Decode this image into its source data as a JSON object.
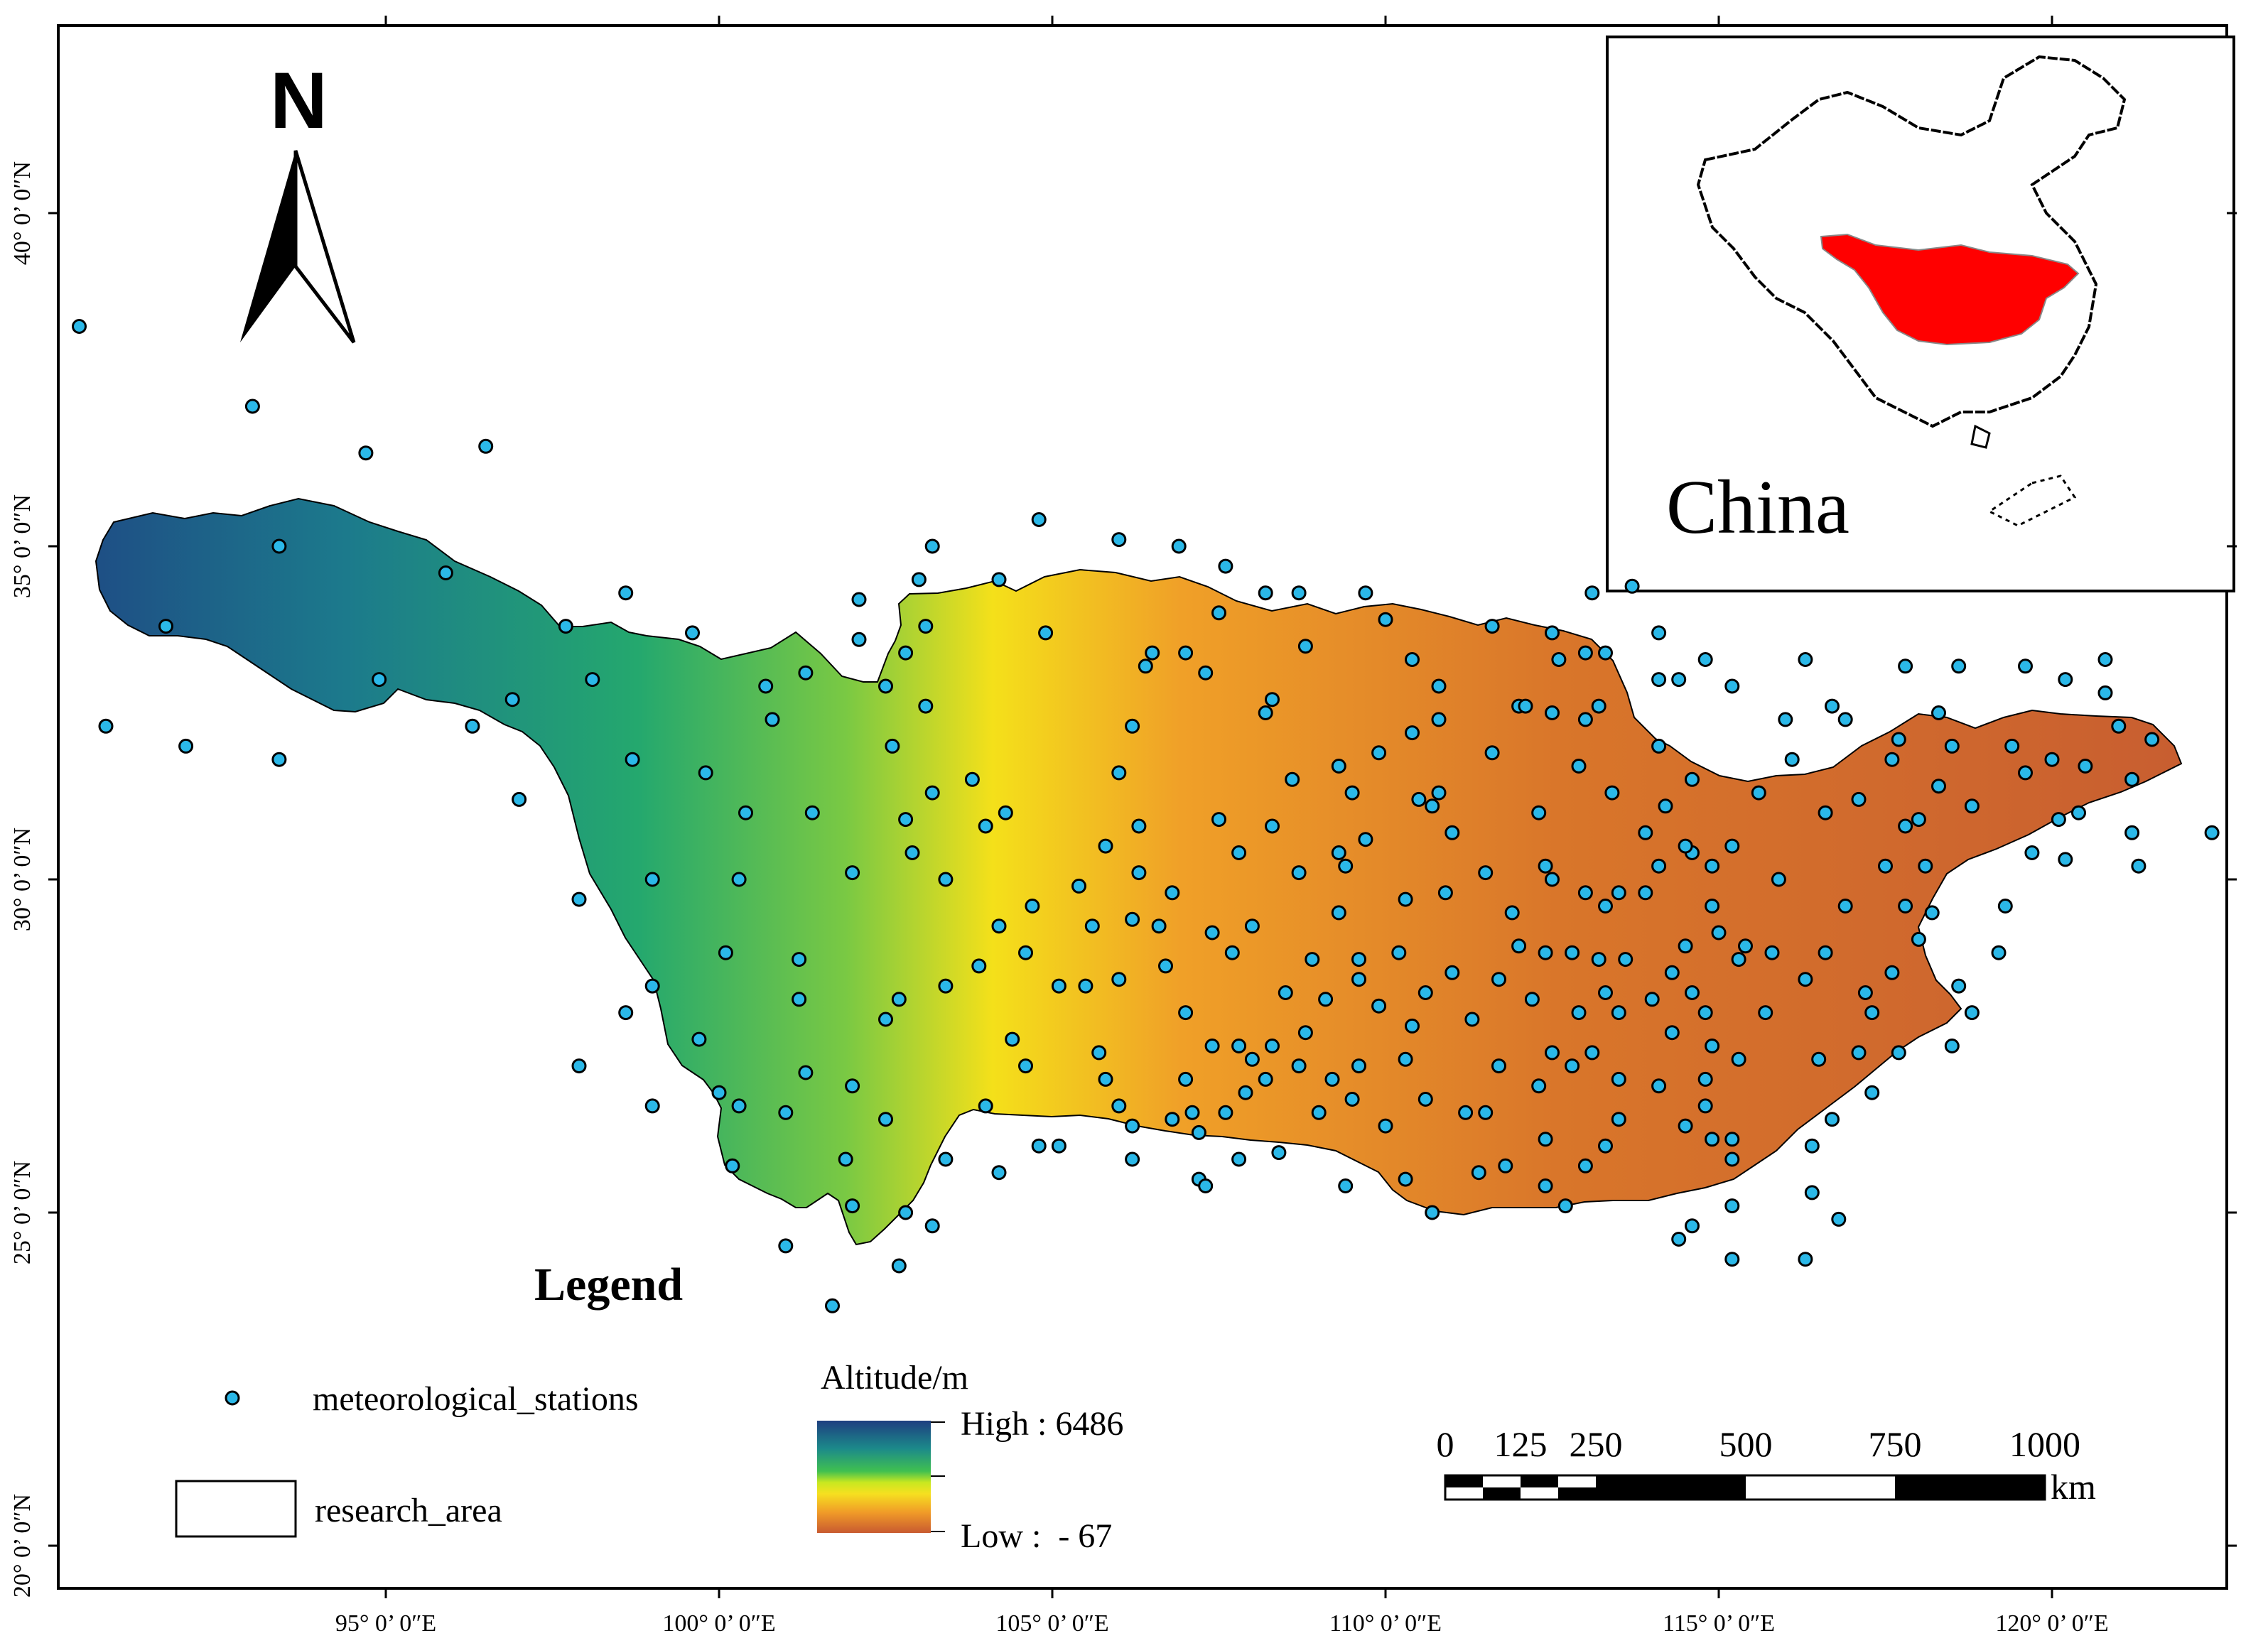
{
  "map": {
    "longitude_ticks": [
      {
        "lon": 95,
        "label": "95° 0’ 0″E"
      },
      {
        "lon": 100,
        "label": "100° 0’ 0″E"
      },
      {
        "lon": 105,
        "label": "105° 0’ 0″E"
      },
      {
        "lon": 110,
        "label": "110° 0’ 0″E"
      },
      {
        "lon": 115,
        "label": "115° 0’ 0″E"
      },
      {
        "lon": 120,
        "label": "120° 0’ 0″E"
      }
    ],
    "latitude_ticks": [
      {
        "lat": 40,
        "label": "40° 0’ 0″N"
      },
      {
        "lat": 35,
        "label": "35° 0’ 0″N"
      },
      {
        "lat": 30,
        "label": "30° 0’ 0″N"
      },
      {
        "lat": 25,
        "label": "25° 0’ 0″N"
      },
      {
        "lat": 20,
        "label": "20° 0’ 0″N"
      }
    ],
    "north_arrow_label": "N",
    "stations_color": "#2bb8e8",
    "research_area_colors": [
      "#1e4f85",
      "#1c7a8c",
      "#24a86e",
      "#7ac943",
      "#f4e01a",
      "#f0a028",
      "#d9762a",
      "#c85e30"
    ]
  },
  "inset": {
    "label": "China",
    "highlight_color": "#ff0000"
  },
  "legend": {
    "title": "Legend",
    "stations_label": "meteorological_stations",
    "research_area_label": "research_area",
    "altitude_title": "Altitude/m",
    "high_label": "High : 6486",
    "low_label": "Low :  - 67"
  },
  "scale_bar": {
    "labels": [
      "0",
      "125",
      "250",
      "500",
      "750",
      "1000"
    ],
    "unit": "km"
  },
  "stations": [
    [
      90.4,
      38.3
    ],
    [
      93.0,
      37.1
    ],
    [
      94.7,
      36.4
    ],
    [
      96.5,
      36.5
    ],
    [
      93.4,
      35.0
    ],
    [
      91.7,
      33.8
    ],
    [
      95.9,
      34.6
    ],
    [
      97.7,
      33.8
    ],
    [
      98.6,
      34.3
    ],
    [
      99.6,
      33.7
    ],
    [
      94.9,
      33.0
    ],
    [
      96.9,
      32.7
    ],
    [
      98.1,
      33.0
    ],
    [
      90.8,
      32.3
    ],
    [
      92.0,
      32.0
    ],
    [
      93.4,
      31.8
    ],
    [
      96.3,
      32.3
    ],
    [
      97.0,
      31.2
    ],
    [
      98.7,
      31.8
    ],
    [
      99.8,
      31.6
    ],
    [
      100.7,
      32.9
    ],
    [
      100.8,
      32.4
    ],
    [
      101.3,
      33.1
    ],
    [
      102.1,
      33.6
    ],
    [
      102.8,
      33.4
    ],
    [
      100.4,
      31.0
    ],
    [
      100.3,
      30.0
    ],
    [
      97.9,
      29.7
    ],
    [
      99.0,
      30.0
    ],
    [
      101.4,
      31.0
    ],
    [
      102.0,
      30.1
    ],
    [
      101.2,
      28.8
    ],
    [
      100.1,
      28.9
    ],
    [
      101.2,
      28.2
    ],
    [
      99.0,
      28.4
    ],
    [
      98.6,
      28.0
    ],
    [
      97.9,
      27.2
    ],
    [
      99.7,
      27.6
    ],
    [
      100.0,
      26.8
    ],
    [
      100.3,
      26.6
    ],
    [
      101.0,
      26.5
    ],
    [
      101.3,
      27.1
    ],
    [
      101.9,
      25.8
    ],
    [
      99.0,
      26.6
    ],
    [
      100.2,
      25.7
    ],
    [
      102.0,
      25.1
    ],
    [
      101.0,
      24.5
    ],
    [
      101.7,
      23.6
    ],
    [
      102.7,
      24.2
    ],
    [
      103.2,
      24.8
    ],
    [
      102.8,
      25.0
    ],
    [
      104.2,
      25.6
    ],
    [
      103.4,
      25.8
    ],
    [
      102.5,
      26.4
    ],
    [
      102.0,
      26.9
    ],
    [
      102.5,
      27.9
    ],
    [
      102.7,
      28.2
    ],
    [
      103.4,
      28.4
    ],
    [
      104.0,
      26.6
    ],
    [
      104.2,
      29.3
    ],
    [
      103.4,
      30.0
    ],
    [
      102.9,
      30.4
    ],
    [
      102.8,
      30.9
    ],
    [
      103.2,
      31.3
    ],
    [
      102.6,
      32.0
    ],
    [
      102.5,
      32.9
    ],
    [
      103.1,
      32.6
    ],
    [
      103.1,
      33.8
    ],
    [
      102.1,
      34.2
    ],
    [
      103.0,
      34.5
    ],
    [
      103.2,
      35.0
    ],
    [
      104.2,
      34.5
    ],
    [
      104.9,
      33.7
    ],
    [
      104.3,
      31.0
    ],
    [
      103.8,
      31.5
    ],
    [
      104.0,
      30.8
    ],
    [
      105.4,
      29.9
    ],
    [
      105.8,
      30.5
    ],
    [
      104.6,
      28.9
    ],
    [
      103.9,
      28.7
    ],
    [
      104.7,
      29.6
    ],
    [
      105.1,
      28.4
    ],
    [
      104.4,
      27.6
    ],
    [
      104.6,
      27.2
    ],
    [
      105.5,
      28.4
    ],
    [
      105.7,
      27.4
    ],
    [
      105.8,
      27.0
    ],
    [
      106.0,
      26.6
    ],
    [
      104.8,
      26.0
    ],
    [
      105.1,
      26.0
    ],
    [
      106.2,
      25.8
    ],
    [
      106.2,
      26.3
    ],
    [
      106.8,
      26.4
    ],
    [
      107.1,
      26.5
    ],
    [
      107.0,
      27.0
    ],
    [
      107.8,
      27.5
    ],
    [
      107.4,
      27.5
    ],
    [
      107.0,
      28.0
    ],
    [
      106.7,
      28.7
    ],
    [
      106.0,
      28.5
    ],
    [
      106.2,
      29.4
    ],
    [
      106.3,
      30.1
    ],
    [
      106.8,
      29.8
    ],
    [
      106.3,
      30.8
    ],
    [
      106.0,
      31.6
    ],
    [
      106.2,
      32.3
    ],
    [
      106.4,
      33.2
    ],
    [
      106.5,
      33.4
    ],
    [
      107.3,
      33.1
    ],
    [
      107.0,
      33.4
    ],
    [
      107.5,
      34.0
    ],
    [
      107.6,
      34.7
    ],
    [
      106.9,
      35.0
    ],
    [
      106.0,
      35.1
    ],
    [
      104.8,
      35.4
    ],
    [
      105.6,
      29.3
    ],
    [
      106.6,
      29.3
    ],
    [
      107.7,
      28.9
    ],
    [
      107.4,
      29.2
    ],
    [
      107.2,
      26.2
    ],
    [
      108.4,
      25.9
    ],
    [
      107.8,
      25.8
    ],
    [
      107.2,
      25.5
    ],
    [
      107.3,
      25.4
    ],
    [
      107.6,
      26.5
    ],
    [
      108.2,
      27.0
    ],
    [
      107.9,
      26.8
    ],
    [
      108.3,
      27.5
    ],
    [
      108.7,
      27.2
    ],
    [
      108.0,
      27.3
    ],
    [
      108.5,
      28.3
    ],
    [
      108.9,
      28.8
    ],
    [
      108.0,
      29.3
    ],
    [
      107.8,
      30.4
    ],
    [
      107.5,
      30.9
    ],
    [
      108.3,
      30.8
    ],
    [
      108.7,
      30.1
    ],
    [
      109.4,
      30.2
    ],
    [
      109.3,
      29.5
    ],
    [
      109.6,
      28.5
    ],
    [
      109.6,
      28.8
    ],
    [
      109.9,
      28.1
    ],
    [
      109.1,
      28.2
    ],
    [
      108.8,
      27.7
    ],
    [
      109.2,
      27.0
    ],
    [
      109.6,
      27.2
    ],
    [
      109.5,
      26.7
    ],
    [
      109.0,
      26.5
    ],
    [
      109.4,
      25.4
    ],
    [
      110.3,
      25.5
    ],
    [
      110.0,
      26.3
    ],
    [
      110.6,
      26.7
    ],
    [
      110.7,
      25.0
    ],
    [
      110.3,
      27.3
    ],
    [
      110.4,
      27.8
    ],
    [
      110.6,
      28.3
    ],
    [
      110.2,
      28.9
    ],
    [
      110.3,
      29.7
    ],
    [
      109.7,
      30.6
    ],
    [
      109.5,
      31.3
    ],
    [
      110.5,
      31.2
    ],
    [
      110.7,
      31.1
    ],
    [
      110.8,
      31.3
    ],
    [
      111.0,
      30.7
    ],
    [
      109.9,
      31.9
    ],
    [
      110.4,
      32.2
    ],
    [
      110.8,
      32.4
    ],
    [
      110.8,
      32.9
    ],
    [
      110.4,
      33.3
    ],
    [
      110.0,
      33.9
    ],
    [
      109.7,
      34.3
    ],
    [
      108.7,
      34.3
    ],
    [
      108.2,
      34.3
    ],
    [
      108.8,
      33.5
    ],
    [
      108.2,
      32.5
    ],
    [
      108.3,
      32.7
    ],
    [
      108.6,
      31.5
    ],
    [
      109.3,
      31.7
    ],
    [
      109.3,
      30.4
    ],
    [
      110.9,
      29.8
    ],
    [
      111.5,
      30.1
    ],
    [
      112.5,
      30.0
    ],
    [
      111.2,
      26.5
    ],
    [
      111.5,
      26.5
    ],
    [
      111.7,
      27.2
    ],
    [
      111.3,
      27.9
    ],
    [
      111.0,
      28.6
    ],
    [
      111.7,
      28.5
    ],
    [
      112.2,
      28.2
    ],
    [
      112.5,
      27.4
    ],
    [
      112.8,
      27.2
    ],
    [
      112.3,
      26.9
    ],
    [
      112.4,
      26.1
    ],
    [
      111.4,
      25.6
    ],
    [
      111.8,
      25.7
    ],
    [
      112.4,
      25.4
    ],
    [
      112.7,
      25.1
    ],
    [
      113.0,
      25.7
    ],
    [
      113.3,
      26.0
    ],
    [
      113.5,
      26.4
    ],
    [
      113.5,
      27.0
    ],
    [
      113.1,
      27.4
    ],
    [
      113.5,
      28.0
    ],
    [
      112.9,
      28.0
    ],
    [
      113.3,
      28.3
    ],
    [
      113.2,
      28.8
    ],
    [
      112.8,
      28.9
    ],
    [
      112.4,
      28.9
    ],
    [
      112.0,
      29.0
    ],
    [
      111.9,
      29.5
    ],
    [
      112.4,
      30.2
    ],
    [
      113.0,
      29.8
    ],
    [
      113.3,
      29.6
    ],
    [
      113.5,
      29.8
    ],
    [
      113.6,
      28.8
    ],
    [
      114.3,
      28.6
    ],
    [
      114.5,
      29.0
    ],
    [
      115.0,
      29.2
    ],
    [
      115.3,
      28.8
    ],
    [
      115.8,
      28.9
    ],
    [
      116.3,
      28.5
    ],
    [
      115.7,
      28.0
    ],
    [
      115.3,
      27.3
    ],
    [
      114.9,
      27.5
    ],
    [
      114.8,
      26.6
    ],
    [
      115.2,
      26.1
    ],
    [
      114.5,
      26.3
    ],
    [
      114.1,
      26.9
    ],
    [
      114.3,
      27.7
    ],
    [
      114.0,
      28.2
    ],
    [
      113.9,
      29.8
    ],
    [
      114.1,
      30.2
    ],
    [
      113.9,
      30.7
    ],
    [
      113.4,
      31.3
    ],
    [
      112.9,
      31.7
    ],
    [
      113.2,
      32.6
    ],
    [
      112.3,
      31.0
    ],
    [
      111.6,
      31.9
    ],
    [
      112.0,
      32.6
    ],
    [
      112.5,
      32.5
    ],
    [
      113.0,
      32.4
    ],
    [
      113.3,
      33.4
    ],
    [
      112.6,
      33.3
    ],
    [
      112.5,
      33.7
    ],
    [
      112.1,
      32.6
    ],
    [
      111.6,
      33.8
    ],
    [
      113.0,
      33.4
    ],
    [
      113.7,
      34.4
    ],
    [
      113.1,
      34.3
    ],
    [
      114.1,
      33.7
    ],
    [
      114.4,
      33.0
    ],
    [
      114.1,
      32.0
    ],
    [
      114.6,
      31.5
    ],
    [
      114.2,
      31.1
    ],
    [
      114.6,
      30.4
    ],
    [
      114.9,
      30.2
    ],
    [
      114.5,
      30.5
    ],
    [
      115.2,
      30.5
    ],
    [
      115.6,
      31.3
    ],
    [
      115.9,
      30.0
    ],
    [
      114.9,
      29.6
    ],
    [
      115.4,
      29.0
    ],
    [
      114.8,
      28.0
    ],
    [
      114.6,
      28.3
    ],
    [
      114.8,
      27.0
    ],
    [
      114.9,
      26.1
    ],
    [
      115.2,
      25.8
    ],
    [
      115.2,
      25.1
    ],
    [
      114.6,
      24.8
    ],
    [
      114.4,
      24.6
    ],
    [
      115.2,
      24.3
    ],
    [
      116.4,
      25.3
    ],
    [
      116.4,
      26.0
    ],
    [
      116.7,
      26.4
    ],
    [
      116.5,
      27.3
    ],
    [
      117.1,
      27.4
    ],
    [
      117.2,
      28.3
    ],
    [
      116.6,
      28.9
    ],
    [
      116.9,
      29.6
    ],
    [
      117.8,
      29.6
    ],
    [
      117.5,
      30.2
    ],
    [
      118.1,
      30.2
    ],
    [
      118.0,
      30.9
    ],
    [
      118.3,
      31.4
    ],
    [
      117.6,
      31.8
    ],
    [
      117.1,
      31.2
    ],
    [
      116.6,
      31.0
    ],
    [
      116.1,
      31.8
    ],
    [
      116.9,
      32.4
    ],
    [
      117.7,
      32.1
    ],
    [
      118.3,
      32.5
    ],
    [
      118.5,
      32.0
    ],
    [
      119.4,
      32.0
    ],
    [
      119.6,
      31.6
    ],
    [
      120.0,
      31.8
    ],
    [
      120.5,
      31.7
    ],
    [
      121.0,
      32.3
    ],
    [
      121.5,
      32.1
    ],
    [
      121.2,
      31.5
    ],
    [
      120.4,
      31.0
    ],
    [
      120.1,
      30.9
    ],
    [
      119.7,
      30.4
    ],
    [
      120.2,
      30.3
    ],
    [
      121.2,
      30.7
    ],
    [
      121.3,
      30.2
    ],
    [
      122.4,
      30.7
    ],
    [
      118.8,
      31.1
    ],
    [
      117.8,
      30.8
    ],
    [
      118.2,
      29.5
    ],
    [
      119.3,
      29.6
    ],
    [
      118.0,
      29.1
    ],
    [
      118.6,
      28.4
    ],
    [
      119.2,
      28.9
    ],
    [
      117.6,
      28.6
    ],
    [
      117.3,
      28.0
    ],
    [
      117.7,
      27.4
    ],
    [
      118.5,
      27.5
    ],
    [
      118.8,
      28.0
    ],
    [
      116.3,
      24.3
    ],
    [
      116.8,
      24.9
    ],
    [
      117.3,
      26.8
    ],
    [
      114.8,
      33.3
    ],
    [
      115.2,
      32.9
    ],
    [
      116.3,
      33.3
    ],
    [
      116.7,
      32.6
    ],
    [
      117.8,
      33.2
    ],
    [
      118.6,
      33.2
    ],
    [
      119.6,
      33.2
    ],
    [
      120.8,
      33.3
    ],
    [
      120.2,
      33.0
    ],
    [
      120.8,
      32.8
    ],
    [
      116.0,
      32.4
    ],
    [
      114.1,
      33.0
    ]
  ]
}
